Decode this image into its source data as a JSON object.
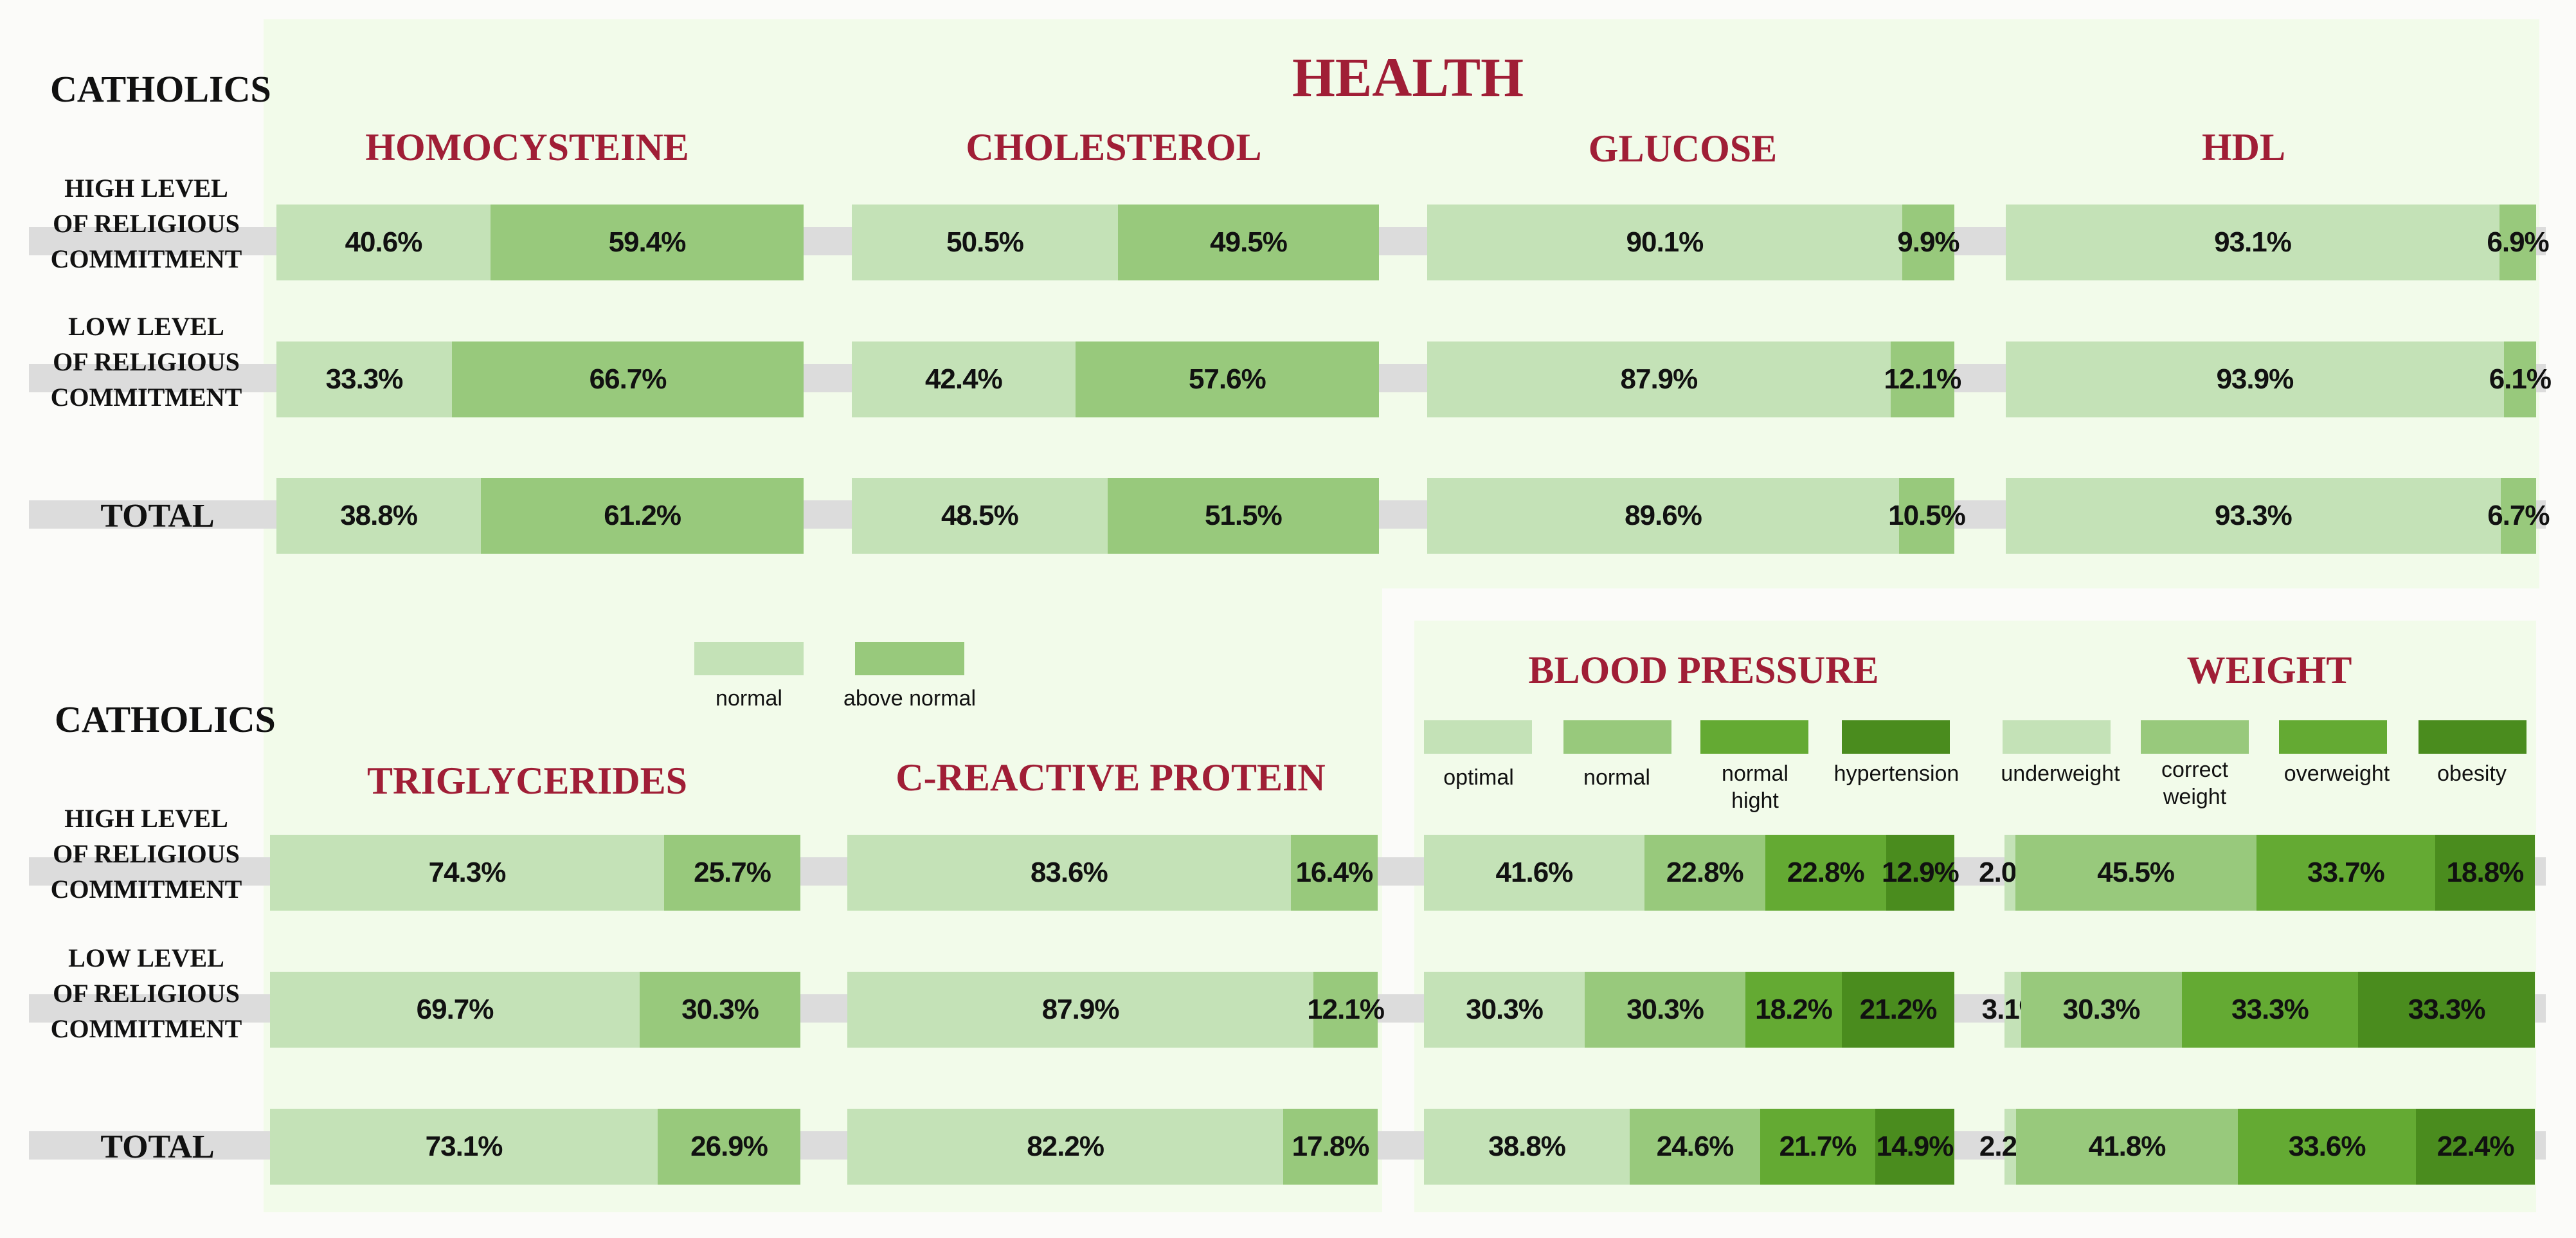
{
  "main_title": "HEALTH",
  "section_label": "CATHOLICS",
  "row_labels": {
    "high": "HIGH LEVEL\nOF RELIGIOUS\nCOMMITMENT",
    "low": "LOW LEVEL\nOF RELIGIOUS\nCOMMITMENT",
    "total": "TOTAL"
  },
  "legend_two": [
    "normal",
    "above normal"
  ],
  "legend_bp": [
    "optimal",
    "normal",
    "normal hight",
    "hypertension"
  ],
  "legend_weight": [
    "underweight",
    "correct weight",
    "overweight",
    "obesity"
  ],
  "colors": {
    "level1": "#c4e2b7",
    "level2": "#98c97c",
    "level3": "#64aa33",
    "level4": "#4a8c1e",
    "title": "#a01e36",
    "band": "#dcdcdc",
    "panel": "#f2fbea"
  },
  "chart_data": [
    {
      "type": "bar",
      "stacked": true,
      "title": "HOMOCYSTEINE",
      "categories": [
        "HIGH LEVEL OF RELIGIOUS COMMITMENT",
        "LOW LEVEL OF RELIGIOUS COMMITMENT",
        "TOTAL"
      ],
      "series_names": [
        "normal",
        "above normal"
      ],
      "rows": [
        [
          40.6,
          59.4
        ],
        [
          33.3,
          66.7
        ],
        [
          38.8,
          61.2
        ]
      ]
    },
    {
      "type": "bar",
      "stacked": true,
      "title": "CHOLESTEROL",
      "categories": [
        "HIGH LEVEL OF RELIGIOUS COMMITMENT",
        "LOW LEVEL OF RELIGIOUS COMMITMENT",
        "TOTAL"
      ],
      "series_names": [
        "normal",
        "above normal"
      ],
      "rows": [
        [
          50.5,
          49.5
        ],
        [
          42.4,
          57.6
        ],
        [
          48.5,
          51.5
        ]
      ]
    },
    {
      "type": "bar",
      "stacked": true,
      "title": "GLUCOSE",
      "categories": [
        "HIGH LEVEL OF RELIGIOUS COMMITMENT",
        "LOW LEVEL OF RELIGIOUS COMMITMENT",
        "TOTAL"
      ],
      "series_names": [
        "normal",
        "above normal"
      ],
      "rows": [
        [
          90.1,
          9.9
        ],
        [
          87.9,
          12.1
        ],
        [
          89.6,
          10.5
        ]
      ]
    },
    {
      "type": "bar",
      "stacked": true,
      "title": "HDL",
      "categories": [
        "HIGH LEVEL OF RELIGIOUS COMMITMENT",
        "LOW LEVEL OF RELIGIOUS COMMITMENT",
        "TOTAL"
      ],
      "series_names": [
        "normal",
        "above normal"
      ],
      "rows": [
        [
          93.1,
          6.9
        ],
        [
          93.9,
          6.1
        ],
        [
          93.3,
          6.7
        ]
      ]
    },
    {
      "type": "bar",
      "stacked": true,
      "title": "TRIGLYCERIDES",
      "categories": [
        "HIGH LEVEL OF RELIGIOUS COMMITMENT",
        "LOW LEVEL OF RELIGIOUS COMMITMENT",
        "TOTAL"
      ],
      "series_names": [
        "normal",
        "above normal"
      ],
      "rows": [
        [
          74.3,
          25.7
        ],
        [
          69.7,
          30.3
        ],
        [
          73.1,
          26.9
        ]
      ]
    },
    {
      "type": "bar",
      "stacked": true,
      "title": "C-REACTIVE PROTEIN",
      "categories": [
        "HIGH LEVEL OF RELIGIOUS COMMITMENT",
        "LOW LEVEL OF RELIGIOUS COMMITMENT",
        "TOTAL"
      ],
      "series_names": [
        "normal",
        "above normal"
      ],
      "rows": [
        [
          83.6,
          16.4
        ],
        [
          87.9,
          12.1
        ],
        [
          82.2,
          17.8
        ]
      ]
    },
    {
      "type": "bar",
      "stacked": true,
      "title": "BLOOD PRESSURE",
      "categories": [
        "HIGH LEVEL OF RELIGIOUS COMMITMENT",
        "LOW LEVEL OF RELIGIOUS COMMITMENT",
        "TOTAL"
      ],
      "series_names": [
        "optimal",
        "normal",
        "normal hight",
        "hypertension"
      ],
      "rows": [
        [
          41.6,
          22.8,
          22.8,
          12.9
        ],
        [
          30.3,
          30.3,
          18.2,
          21.2
        ],
        [
          38.8,
          24.6,
          21.7,
          14.9
        ]
      ]
    },
    {
      "type": "bar",
      "stacked": true,
      "title": "WEIGHT",
      "categories": [
        "HIGH LEVEL OF RELIGIOUS COMMITMENT",
        "LOW LEVEL OF RELIGIOUS COMMITMENT",
        "TOTAL"
      ],
      "series_names": [
        "underweight",
        "correct weight",
        "overweight",
        "obesity"
      ],
      "rows": [
        [
          2.0,
          45.5,
          33.7,
          18.8
        ],
        [
          3.1,
          30.3,
          33.3,
          33.3
        ],
        [
          2.2,
          41.8,
          33.6,
          22.4
        ]
      ]
    }
  ]
}
